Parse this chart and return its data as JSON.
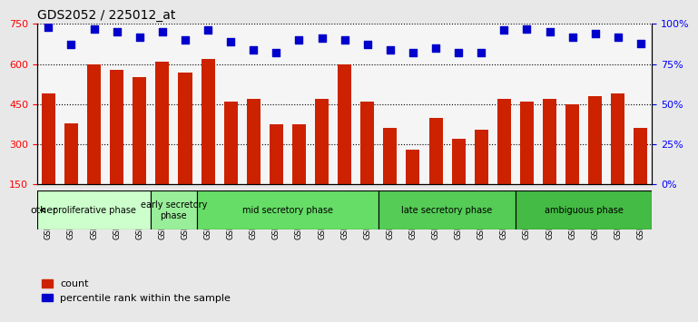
{
  "title": "GDS2052 / 225012_at",
  "samples": [
    "GSM109814",
    "GSM109815",
    "GSM109816",
    "GSM109817",
    "GSM109820",
    "GSM109821",
    "GSM109822",
    "GSM109824",
    "GSM109825",
    "GSM109826",
    "GSM109827",
    "GSM109828",
    "GSM109829",
    "GSM109830",
    "GSM109831",
    "GSM109834",
    "GSM109835",
    "GSM109836",
    "GSM109837",
    "GSM109838",
    "GSM109839",
    "GSM109818",
    "GSM109819",
    "GSM109823",
    "GSM109832",
    "GSM109833",
    "GSM109840"
  ],
  "counts": [
    490,
    380,
    600,
    580,
    550,
    610,
    570,
    620,
    460,
    470,
    375,
    375,
    470,
    600,
    460,
    360,
    280,
    400,
    320,
    355,
    470,
    460,
    470,
    450,
    480,
    490,
    360
  ],
  "percentiles": [
    98,
    87,
    97,
    95,
    92,
    95,
    90,
    96,
    89,
    84,
    82,
    90,
    91,
    90,
    87,
    84,
    82,
    85,
    82,
    82,
    96,
    97,
    95,
    92,
    94,
    92,
    88
  ],
  "bar_color": "#CC2200",
  "percentile_color": "#0000CC",
  "phases": [
    {
      "label": "proliferative phase",
      "start": 0,
      "end": 5,
      "color": "#CCFFCC"
    },
    {
      "label": "early secretory\nphase",
      "start": 5,
      "end": 7,
      "color": "#99EE99"
    },
    {
      "label": "mid secretory phase",
      "start": 7,
      "end": 15,
      "color": "#66DD66"
    },
    {
      "label": "late secretory phase",
      "start": 15,
      "end": 21,
      "color": "#55CC55"
    },
    {
      "label": "ambiguous phase",
      "start": 21,
      "end": 27,
      "color": "#44BB44"
    }
  ],
  "ylim_left": [
    150,
    750
  ],
  "ylim_right": [
    0,
    100
  ],
  "yticks_left": [
    150,
    300,
    450,
    600,
    750
  ],
  "yticks_right": [
    0,
    25,
    50,
    75,
    100
  ],
  "bg_color": "#E8E8E8",
  "plot_bg": "#F5F5F5"
}
